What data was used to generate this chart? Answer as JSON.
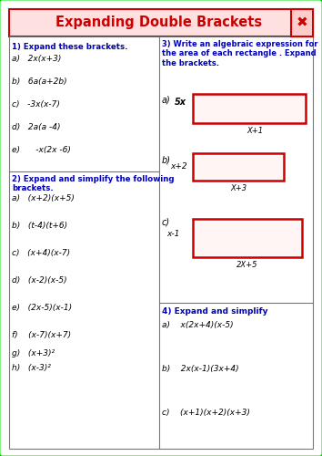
{
  "title": "Expanding Double Brackets",
  "title_color": "#cc0000",
  "border_color": "#00dd00",
  "section1_title": "1) Expand these brackets.",
  "section1_items": [
    "a)   2x(x+3)",
    "b)   6a(a+2b)",
    "c)   -3x(x-7)",
    "d)   2a(a -4)",
    "e)      -x(2x -6)"
  ],
  "section2_title": "2) Expand and simplify the following\nbrackets.",
  "section2_items": [
    "a)   (x+2)(x+5)",
    "b)   (t-4)(t+6)",
    "c)   (x+4)(x-7)",
    "d)   (x-2)(x-5)",
    "e)   (2x-5)(x-1)",
    "f)    (x-7)(x+7)",
    "g)   (x+3)²",
    "h)   (x-3)²"
  ],
  "section3_title": "3) Write an algebraic expression for\nthe area of each rectangle . Expand\nthe brackets.",
  "section4_title": "4) Expand and simplify",
  "section4_items": [
    "a)    x(2x+4)(x-5)",
    "b)    2x(x-1)(3x+4)",
    "c)    (x+1)(x+2)(x+3)"
  ],
  "rect_a_side": "5x",
  "rect_a_bottom": "X+1",
  "rect_b_side": "x+2",
  "rect_b_bottom": "X+3",
  "rect_c_side": "x-1",
  "rect_c_bottom": "2X+5"
}
